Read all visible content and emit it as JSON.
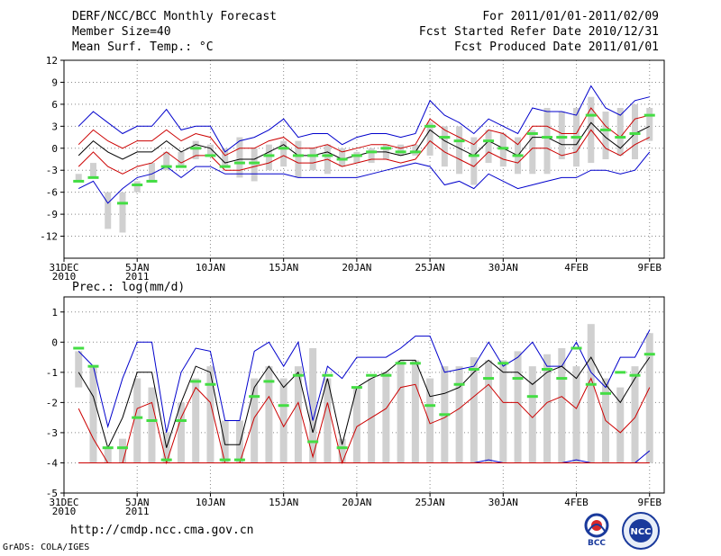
{
  "header": {
    "title": "DERF/NCC/BCC Monthly Forecast",
    "member": "Member Size=40",
    "variable": "Mean Surf. Temp.: °C",
    "period": "For 2011/01/01-2011/02/09",
    "started": "Fcst Started Refer Date 2010/12/31",
    "produced": "Fcst Produced Date 2011/01/01"
  },
  "footer": {
    "url": "http://cmdp.ncc.cma.gov.cn",
    "grads": "GrADS: COLA/IGES"
  },
  "logos": {
    "bcc": "BCC",
    "ncc": "NCC"
  },
  "colors": {
    "envelope": "#0000cc",
    "spread": "#cc0000",
    "mean": "#000000",
    "obs": "#44dd44",
    "box": "#d0d0d0",
    "grid": "#888888"
  },
  "chart_data": [
    {
      "type": "line",
      "title": "Mean Surf. Temp.: °C",
      "x_ticks": [
        "31DEC\n2010",
        "5JAN\n2011",
        "10JAN",
        "15JAN",
        "20JAN",
        "25JAN",
        "30JAN",
        "4FEB",
        "9FEB"
      ],
      "x_tick_days": [
        0,
        5,
        10,
        15,
        20,
        25,
        30,
        35,
        40
      ],
      "ylim": [
        -15,
        12
      ],
      "y_ticks": [
        12,
        9,
        6,
        3,
        0,
        -3,
        -6,
        -9,
        -12
      ],
      "days": [
        1,
        2,
        3,
        4,
        5,
        6,
        7,
        8,
        9,
        10,
        11,
        12,
        13,
        14,
        15,
        16,
        17,
        18,
        19,
        20,
        21,
        22,
        23,
        24,
        25,
        26,
        27,
        28,
        29,
        30,
        31,
        32,
        33,
        34,
        35,
        36,
        37,
        38,
        39,
        40
      ],
      "series": [
        {
          "name": "max",
          "values": [
            3,
            5,
            3.5,
            2,
            3,
            3,
            5.3,
            2.5,
            3,
            3,
            -0.5,
            1,
            1.5,
            2.5,
            4,
            1.5,
            2,
            2,
            0.5,
            1.5,
            2,
            2,
            1.5,
            2,
            6.5,
            4.5,
            3.5,
            2,
            4,
            3,
            2,
            5.5,
            5,
            5,
            4.5,
            8.5,
            5.5,
            4.5,
            6.5,
            7
          ]
        },
        {
          "name": "upper",
          "values": [
            0.5,
            2.5,
            1,
            0,
            1,
            1,
            2.5,
            1,
            2,
            1.5,
            -1,
            0,
            0,
            1,
            1.5,
            0,
            0,
            0.5,
            -0.5,
            0,
            0.5,
            0.5,
            0,
            0.5,
            4,
            2.5,
            1.5,
            0.5,
            2.5,
            2,
            0.5,
            3,
            3,
            2,
            2,
            5.5,
            3,
            1.5,
            4,
            4.5
          ]
        },
        {
          "name": "mean",
          "values": [
            -1,
            1,
            -0.5,
            -1.5,
            -0.5,
            -0.5,
            1,
            -0.5,
            0.5,
            0,
            -2,
            -1.5,
            -1.5,
            -0.5,
            0.5,
            -1,
            -1,
            -0.5,
            -1.5,
            -1,
            -0.5,
            -0.5,
            -1,
            -0.5,
            2.5,
            1,
            0,
            -1,
            1,
            0,
            -1,
            1.5,
            1.5,
            0.5,
            0.5,
            3.5,
            1.5,
            0,
            2,
            3
          ]
        },
        {
          "name": "lower",
          "values": [
            -2.5,
            -0.5,
            -2.5,
            -3.5,
            -2.5,
            -2,
            -0.5,
            -2,
            -1,
            -1,
            -3,
            -3,
            -2.5,
            -2,
            -1,
            -2,
            -2,
            -1.5,
            -2.5,
            -2,
            -1.5,
            -1.5,
            -2,
            -1.5,
            1,
            -0.5,
            -1.5,
            -2.5,
            -0.5,
            -1.5,
            -2,
            0,
            0,
            -1,
            -0.5,
            2.5,
            0,
            -1,
            0.5,
            1.5
          ]
        },
        {
          "name": "min",
          "values": [
            -5.5,
            -4.5,
            -7.5,
            -5.5,
            -4,
            -3.5,
            -2.5,
            -4,
            -2.5,
            -2.5,
            -3.5,
            -3.5,
            -3.5,
            -3.5,
            -3.5,
            -4,
            -4,
            -4,
            -4,
            -4,
            -3.5,
            -3,
            -2.5,
            -2,
            -2.5,
            -5,
            -4.5,
            -5.5,
            -3.5,
            -4.5,
            -5.5,
            -5,
            -4.5,
            -4,
            -4,
            -3,
            -3,
            -3.5,
            -3,
            -0.5
          ]
        },
        {
          "name": "box_low",
          "values": [
            -4.5,
            -4,
            -11,
            -11.5,
            -6,
            -4.5,
            -3,
            -2.5,
            -1.5,
            -1,
            -2.5,
            -4,
            -4.5,
            -3,
            -2.5,
            -4,
            -3,
            -3.5,
            -2.5,
            -2,
            -2,
            -1.5,
            -1,
            -1,
            -1,
            -2.5,
            -3.5,
            -5,
            -2,
            -2.5,
            -3.5,
            -3.5,
            -3.5,
            -1.5,
            -2.5,
            -2,
            -1.5,
            -1,
            -1.5,
            1
          ]
        },
        {
          "name": "box_high",
          "values": [
            -3.5,
            -2,
            -6,
            -6,
            -4.5,
            -2,
            -0.5,
            -0.5,
            1,
            0.5,
            0,
            1.5,
            0,
            0.5,
            1,
            1,
            0,
            0.5,
            0,
            -0.5,
            0,
            0.5,
            0.5,
            0.5,
            3.5,
            3,
            3,
            1.5,
            2.5,
            2,
            1.5,
            2.5,
            5.5,
            5,
            5.5,
            7,
            5,
            5.5,
            6,
            5.5
          ]
        },
        {
          "name": "observed",
          "values": [
            -4.5,
            -4,
            null,
            -7.5,
            -5,
            -4.5,
            -2.5,
            -2.5,
            0,
            -1,
            -2.5,
            -2,
            -2,
            -1,
            0,
            -1,
            -1,
            -1,
            -1.5,
            -1,
            -0.5,
            0,
            -0.5,
            -0.5,
            3,
            1.5,
            1,
            -1,
            1,
            0,
            -1,
            2,
            1.5,
            1.5,
            1.5,
            4.5,
            2.5,
            1.5,
            2,
            4.5
          ]
        }
      ]
    },
    {
      "type": "line",
      "title": "Prec.: log(mm/d)",
      "x_ticks": [
        "31DEC\n2010",
        "5JAN\n2011",
        "10JAN",
        "15JAN",
        "20JAN",
        "25JAN",
        "30JAN",
        "4FEB",
        "9FEB"
      ],
      "x_tick_days": [
        0,
        5,
        10,
        15,
        20,
        25,
        30,
        35,
        40
      ],
      "ylim": [
        -5,
        1.5
      ],
      "y_ticks": [
        1,
        0,
        -1,
        -2,
        -3,
        -4,
        -5
      ],
      "days": [
        1,
        2,
        3,
        4,
        5,
        6,
        7,
        8,
        9,
        10,
        11,
        12,
        13,
        14,
        15,
        16,
        17,
        18,
        19,
        20,
        21,
        22,
        23,
        24,
        25,
        26,
        27,
        28,
        29,
        30,
        31,
        32,
        33,
        34,
        35,
        36,
        37,
        38,
        39,
        40
      ],
      "series": [
        {
          "name": "max",
          "values": [
            -0.3,
            -0.8,
            -2.8,
            -1.2,
            0,
            0,
            -3,
            -1,
            -0.2,
            -0.3,
            -2.6,
            -2.6,
            -0.3,
            0,
            -0.8,
            0,
            -2.6,
            -0.8,
            -1.2,
            -0.5,
            -0.5,
            -0.5,
            -0.2,
            0.2,
            0.2,
            -1,
            -0.9,
            -0.8,
            0,
            -0.8,
            -0.5,
            0,
            -0.8,
            -0.8,
            0,
            -1,
            -1.5,
            -0.5,
            -0.5,
            0.4
          ]
        },
        {
          "name": "mean",
          "values": [
            -1,
            -1.8,
            -3.5,
            -2.5,
            -1,
            -1,
            -3.5,
            -2,
            -0.8,
            -1,
            -3.4,
            -3.4,
            -1.5,
            -0.8,
            -1.5,
            -1,
            -3,
            -1.2,
            -3.4,
            -1.5,
            -1.2,
            -1,
            -0.6,
            -0.6,
            -1.8,
            -1.7,
            -1.5,
            -1,
            -0.6,
            -1,
            -1,
            -1.4,
            -1,
            -0.8,
            -1.2,
            -0.5,
            -1.4,
            -2,
            -1.2,
            -0.5
          ]
        },
        {
          "name": "upper",
          "values": [
            -2.2,
            -3.2,
            -4,
            -4,
            -2.2,
            -2,
            -4,
            -2.5,
            -1.5,
            -2,
            -4,
            -4,
            -2.5,
            -1.8,
            -2.8,
            -2,
            -3.8,
            -2,
            -4,
            -2.8,
            -2.5,
            -2.2,
            -1.5,
            -1.4,
            -2.7,
            -2.5,
            -2.2,
            -1.8,
            -1.4,
            -2,
            -2,
            -2.5,
            -2,
            -1.8,
            -2.2,
            -1.2,
            -2.6,
            -3,
            -2.5,
            -1.5
          ]
        },
        {
          "name": "lower",
          "values": [
            -4,
            -4,
            -4,
            -4,
            -4,
            -4,
            -4,
            -4,
            -4,
            -4,
            -4,
            -4,
            -4,
            -4,
            -4,
            -4,
            -4,
            -4,
            -4,
            -4,
            -4,
            -4,
            -4,
            -4,
            -4,
            -4,
            -4,
            -4,
            -4,
            -4,
            -4,
            -4,
            -4,
            -4,
            -4,
            -4,
            -4,
            -4,
            -4,
            -4
          ]
        },
        {
          "name": "min",
          "values": [
            -4,
            -4,
            -4,
            -4,
            -4,
            -4,
            -4,
            -4,
            -4,
            -4,
            -4,
            -4,
            -4,
            -4,
            -4,
            -4,
            -4,
            -4,
            -4,
            -4,
            -4,
            -4,
            -4,
            -4,
            -4,
            -4,
            -4,
            -4,
            -3.9,
            -4,
            -4,
            -4,
            -4,
            -4,
            -3.9,
            -4,
            -4,
            -4,
            -4,
            -3.6
          ]
        },
        {
          "name": "box_low",
          "values": [
            -1.5,
            -4,
            -4,
            -4,
            -4,
            -4,
            -4,
            -4,
            -4,
            -4,
            -4,
            -4,
            -4,
            -4,
            -4,
            -4,
            -4,
            -4,
            -4,
            -4,
            -4,
            -4,
            -4,
            -4,
            -4,
            -4,
            -4,
            -4,
            -4,
            -4,
            -4,
            -4,
            -4,
            -4,
            -4,
            -4,
            -4,
            -4,
            -4,
            -4
          ]
        },
        {
          "name": "box_high",
          "values": [
            -0.3,
            -0.8,
            -3.5,
            -3.2,
            -1.2,
            -1.5,
            -3,
            -2,
            -1.2,
            -0.8,
            -2.6,
            -2.6,
            -1.2,
            -0.8,
            -1.2,
            -0.8,
            -0.2,
            -1.2,
            -3.2,
            -1.5,
            -1.2,
            -1,
            -0.6,
            -0.6,
            -1.2,
            -0.8,
            -0.8,
            -0.5,
            -0.6,
            -0.6,
            -0.3,
            -0.8,
            -0.4,
            -0.2,
            -0.8,
            0.6,
            -1.2,
            -1.5,
            -0.8,
            0.3
          ]
        },
        {
          "name": "observed",
          "values": [
            -0.2,
            -0.8,
            -3.5,
            -3.5,
            -2.5,
            -2.6,
            -3.9,
            -2.6,
            -1.3,
            -1.4,
            -3.9,
            -3.9,
            -1.8,
            -1.3,
            -2.1,
            -1.1,
            -3.3,
            -1.1,
            -3.5,
            -1.5,
            -1.1,
            -1.1,
            -0.7,
            -0.7,
            -2.1,
            -2.4,
            -1.4,
            -0.9,
            -1.2,
            -0.7,
            -1.2,
            -1.8,
            -0.9,
            -1.2,
            -0.2,
            -1.4,
            -1.7,
            -1,
            -1.1,
            -0.4
          ]
        }
      ]
    }
  ]
}
